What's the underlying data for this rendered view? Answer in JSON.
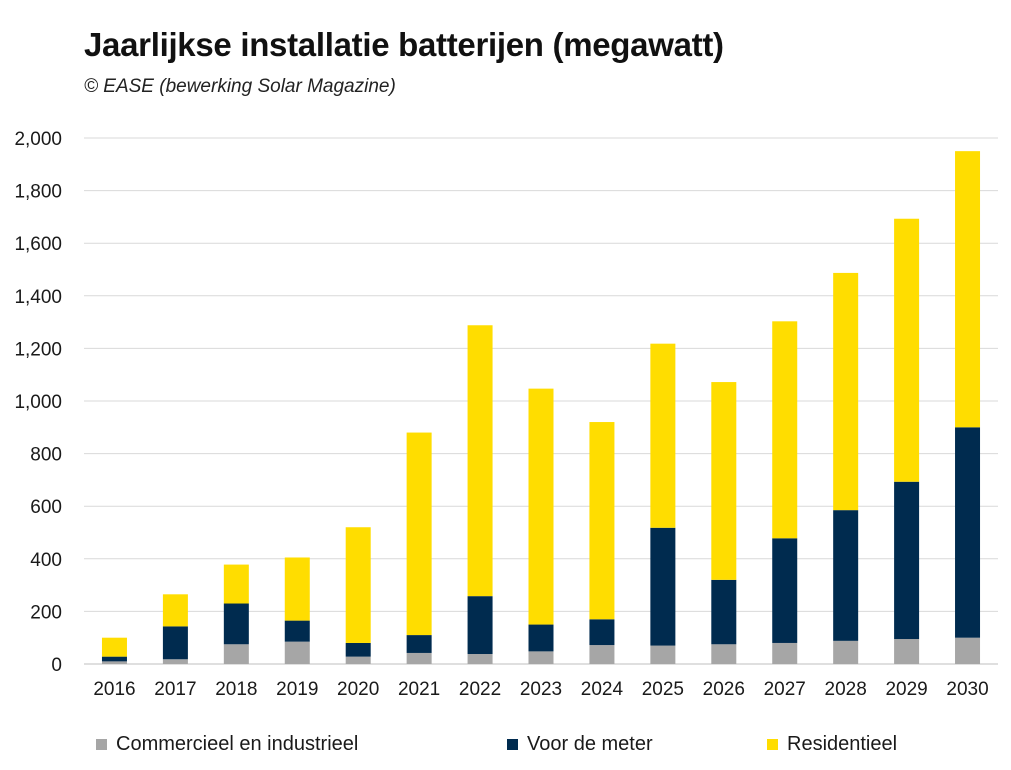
{
  "chart_data": {
    "type": "bar",
    "stacked": true,
    "title": "Jaarlijkse installatie batterijen (megawatt)",
    "subtitle": "© EASE (bewerking Solar Magazine)",
    "categories": [
      "2016",
      "2017",
      "2018",
      "2019",
      "2020",
      "2021",
      "2022",
      "2023",
      "2024",
      "2025",
      "2026",
      "2027",
      "2028",
      "2029",
      "2030"
    ],
    "series": [
      {
        "name": "Commercieel en industrieel",
        "color": "#a6a6a6",
        "values": [
          10,
          18,
          75,
          85,
          28,
          42,
          38,
          48,
          72,
          70,
          75,
          80,
          88,
          95,
          100
        ]
      },
      {
        "name": "Voor de meter",
        "color": "#002b4f",
        "values": [
          18,
          125,
          155,
          80,
          52,
          68,
          220,
          102,
          98,
          448,
          245,
          398,
          497,
          598,
          800
        ]
      },
      {
        "name": "Residentieel",
        "color": "#ffdd00",
        "values": [
          72,
          122,
          148,
          240,
          440,
          770,
          1030,
          897,
          750,
          700,
          752,
          825,
          902,
          1000,
          1050
        ]
      }
    ],
    "xlabel": "",
    "ylabel": "",
    "ylim": [
      0,
      2000
    ],
    "yticks": [
      0,
      200,
      400,
      600,
      800,
      1000,
      1200,
      1400,
      1600,
      1800,
      2000
    ],
    "ytick_labels": [
      "0",
      "200",
      "400",
      "600",
      "800",
      "1,000",
      "1,200",
      "1,400",
      "1,600",
      "1,800",
      "2,000"
    ],
    "grid": true,
    "legend_position": "bottom"
  }
}
